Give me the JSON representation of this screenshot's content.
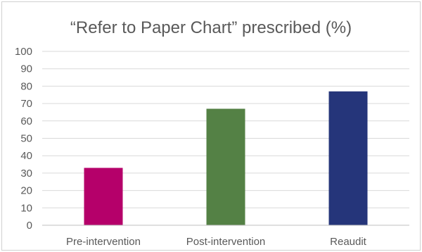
{
  "chart_data": {
    "type": "bar",
    "title": "“Refer to Paper Chart” prescribed (%)",
    "categories": [
      "Pre-intervention",
      "Post-intervention",
      "Reaudit"
    ],
    "values": [
      33,
      67,
      77
    ],
    "colors": [
      "#b5006a",
      "#548145",
      "#25357a"
    ],
    "ylim": [
      0,
      100
    ],
    "yticks": [
      0,
      10,
      20,
      30,
      40,
      50,
      60,
      70,
      80,
      90,
      100
    ],
    "grid": true,
    "legend": "none"
  }
}
